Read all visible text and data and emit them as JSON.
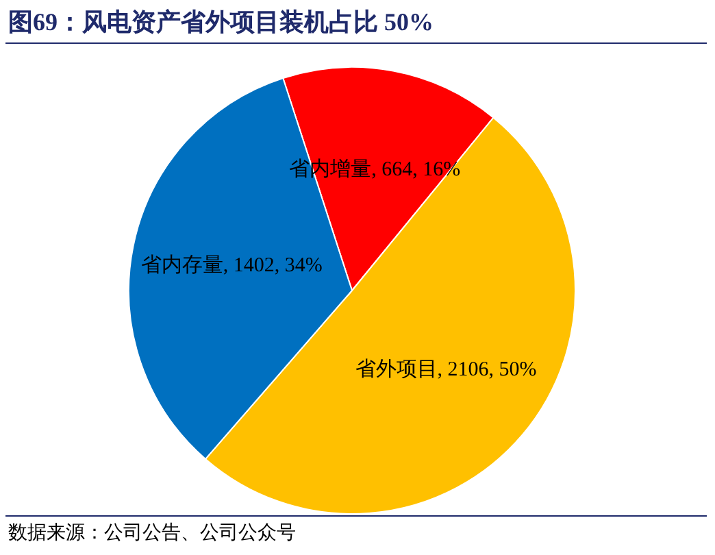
{
  "chart_data": {
    "type": "pie",
    "title": "图69：风电资产省外项目装机占比 50%",
    "categories": [
      "省内增量",
      "省外项目",
      "省内存量"
    ],
    "values": [
      664,
      2106,
      1402
    ],
    "value_labels": [
      "664, 16%",
      "2106, 50%",
      "1402, 34%"
    ],
    "colors": [
      "#ff0000",
      "#ffc000",
      "#0070c0"
    ],
    "legend": false,
    "annotations": [
      "数据来源：公司公告、公司公众号"
    ]
  }
}
